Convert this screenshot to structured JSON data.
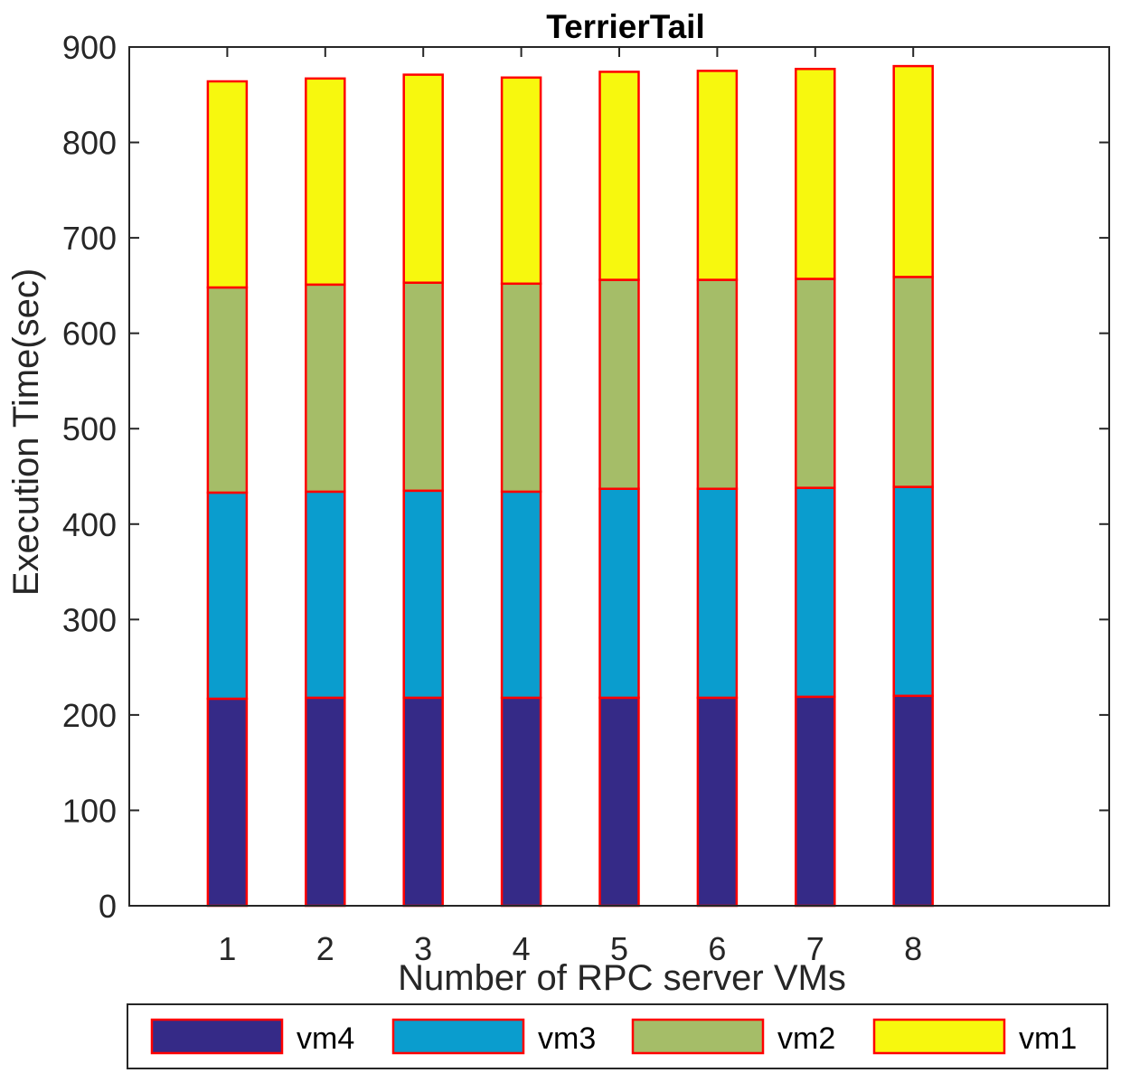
{
  "chart_data": {
    "type": "bar",
    "stacked": true,
    "title": "TerrierTail",
    "xlabel": "Number of RPC server VMs",
    "ylabel": "Execution Time(sec)",
    "categories": [
      "1",
      "2",
      "3",
      "4",
      "5",
      "6",
      "7",
      "8"
    ],
    "xlim": [
      0,
      10
    ],
    "ylim": [
      0,
      900
    ],
    "yticks": [
      "0",
      "100",
      "200",
      "300",
      "400",
      "500",
      "600",
      "700",
      "800",
      "900"
    ],
    "grid": false,
    "legend_position": "bottom",
    "series": [
      {
        "name": "vm4",
        "color": "#352a87",
        "values": [
          217,
          218,
          218,
          218,
          218,
          218,
          219,
          220
        ]
      },
      {
        "name": "vm3",
        "color": "#0a9dce",
        "values": [
          216,
          216,
          217,
          216,
          219,
          219,
          219,
          219
        ]
      },
      {
        "name": "vm2",
        "color": "#a5bd68",
        "values": [
          215,
          217,
          218,
          218,
          219,
          219,
          219,
          220
        ]
      },
      {
        "name": "vm1",
        "color": "#f7f80e",
        "values": [
          216,
          216,
          218,
          216,
          218,
          219,
          220,
          221
        ]
      }
    ],
    "bar_edge_color": "#ff0000"
  }
}
